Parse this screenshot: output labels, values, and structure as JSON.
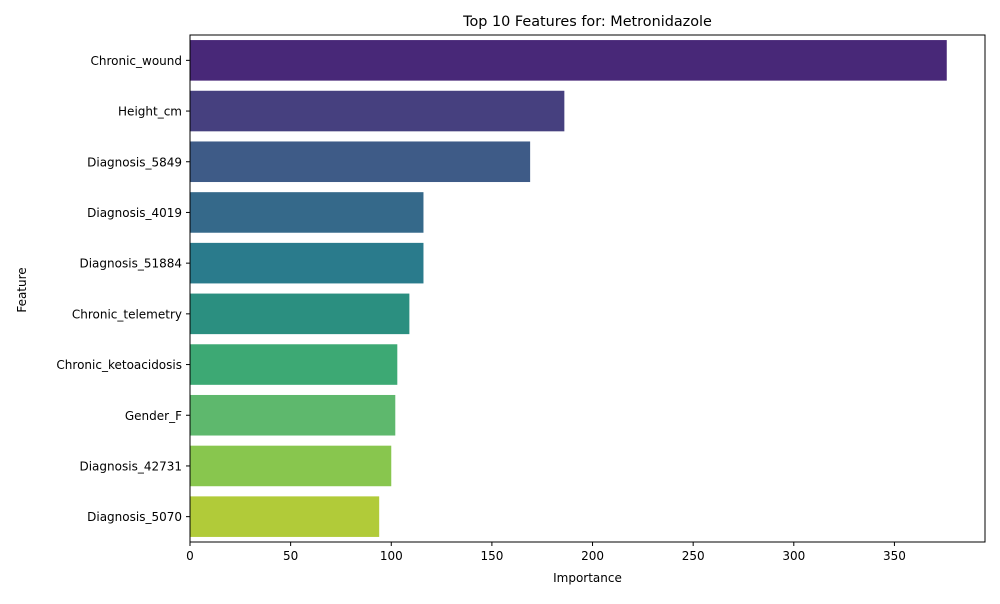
{
  "chart_data": {
    "type": "bar",
    "orientation": "horizontal",
    "title": "Top 10 Features for: Metronidazole",
    "xlabel": "Importance",
    "ylabel": "Feature",
    "categories": [
      "Chronic_wound",
      "Height_cm",
      "Diagnosis_5849",
      "Diagnosis_4019",
      "Diagnosis_51884",
      "Chronic_telemetry",
      "Chronic_ketoacidosis",
      "Gender_F",
      "Diagnosis_42731",
      "Diagnosis_5070"
    ],
    "values": [
      376,
      186,
      169,
      116,
      116,
      109,
      103,
      102,
      100,
      94
    ],
    "colors": [
      "#482878",
      "#46407f",
      "#3e5b87",
      "#35698a",
      "#2a7b8c",
      "#2b8f80",
      "#3da974",
      "#5eb86d",
      "#88c64e",
      "#b1cb39"
    ],
    "xlim": [
      0,
      395
    ],
    "xticks": [
      0,
      50,
      100,
      150,
      200,
      250,
      300,
      350
    ],
    "grid": false,
    "legend": "none"
  }
}
